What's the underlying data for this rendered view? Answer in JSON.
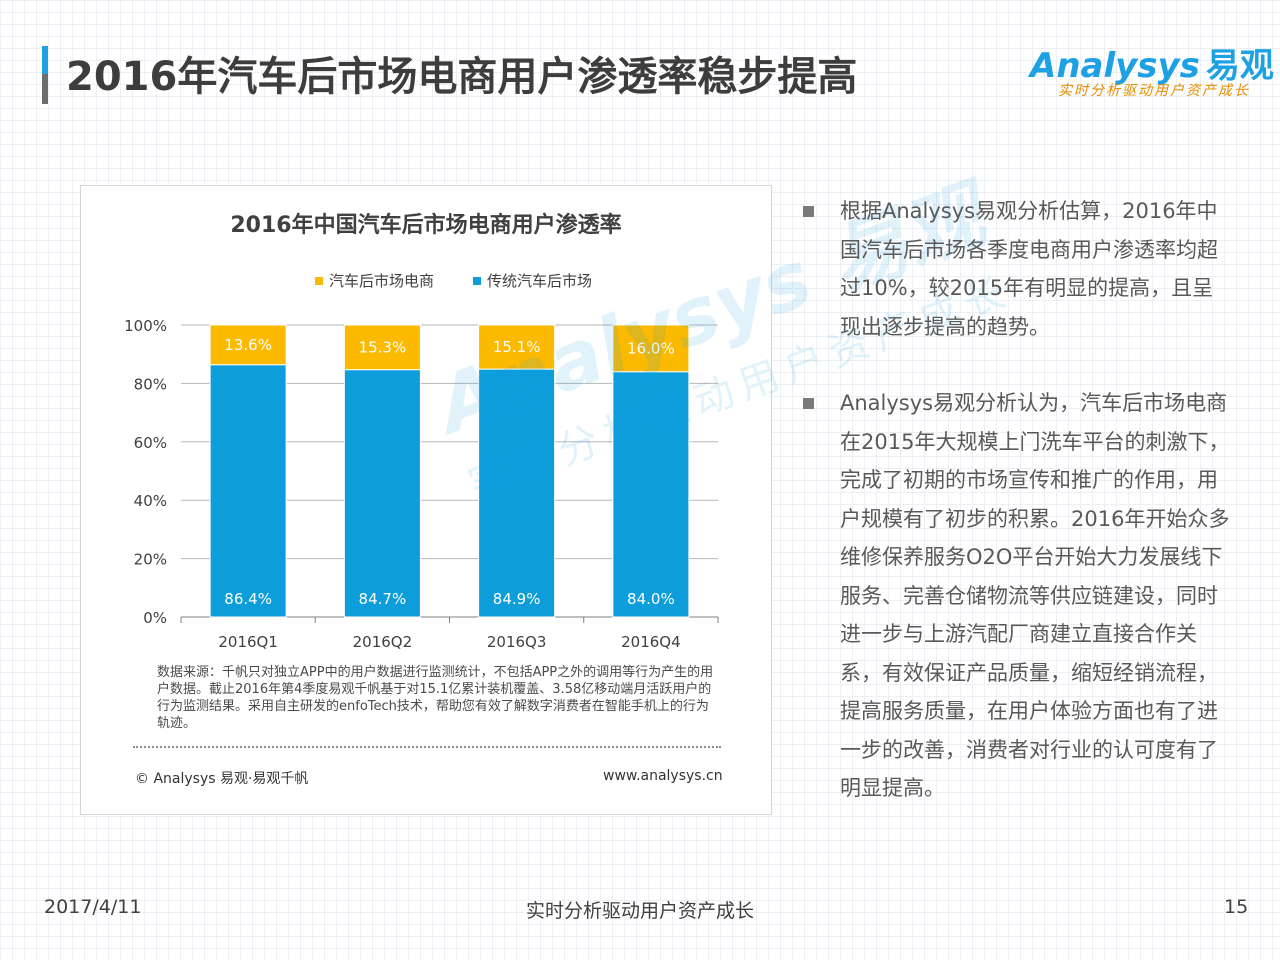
{
  "header": {
    "title": "2016年汽车后市场电商用户渗透率稳步提高",
    "logo_text": "Analysys",
    "logo_cn": "易观",
    "logo_tagline": "实时分析驱动用户资产成长"
  },
  "colors": {
    "accent_blue": "#1ea0e4",
    "accent_orange": "#fbb900"
  },
  "chart_data": {
    "type": "bar",
    "stacked": true,
    "title": "2016年中国汽车后市场电商用户渗透率",
    "categories": [
      "2016Q1",
      "2016Q2",
      "2016Q3",
      "2016Q4"
    ],
    "series": [
      {
        "name": "传统汽车后市场",
        "color": "#0d9ddb",
        "values": [
          86.4,
          84.7,
          84.9,
          84.0
        ],
        "labels": [
          "86.4%",
          "84.7%",
          "84.9%",
          "84.0%"
        ]
      },
      {
        "name": "汽车后市场电商",
        "color": "#fbb900",
        "values": [
          13.6,
          15.3,
          15.1,
          16.0
        ],
        "labels": [
          "13.6%",
          "15.3%",
          "15.1%",
          "16.0%"
        ]
      }
    ],
    "legend_order": [
      "汽车后市场电商",
      "传统汽车后市场"
    ],
    "legend_position": "top",
    "y_ticks": [
      "0%",
      "20%",
      "40%",
      "60%",
      "80%",
      "100%"
    ],
    "ylim": [
      0,
      100
    ],
    "grid": true
  },
  "chart_notes": {
    "source": "数据来源：千帆只对独立APP中的用户数据进行监测统计，不包括APP之外的调用等行为产生的用户数据。截止2016年第4季度易观千帆基于对15.1亿累计装机覆盖、3.58亿移动端月活跃用户的行为监测结果。采用自主研发的enfoTech技术，帮助您有效了解数字消费者在智能手机上的行为轨迹。",
    "copyright": "© Analysys 易观·易观千帆",
    "website": "www.analysys.cn"
  },
  "watermark": {
    "main": "Analysys 易观",
    "tagline": "实时分析驱动用户资产成长"
  },
  "bullets": [
    "根据Analysys易观分析估算，2016年中国汽车后市场各季度电商用户渗透率均超过10%，较2015年有明显的提高，且呈现出逐步提高的趋势。",
    "Analysys易观分析认为，汽车后市场电商在2015年大规模上门洗车平台的刺激下，完成了初期的市场宣传和推广的作用，用户规模有了初步的积累。2016年开始众多维修保养服务O2O平台开始大力发展线下服务、完善仓储物流等供应链建设，同时进一步与上游汽配厂商建立直接合作关系，有效保证产品质量，缩短经销流程，提高服务质量，在用户体验方面也有了进一步的改善，消费者对行业的认可度有了明显提高。"
  ],
  "footer": {
    "date": "2017/4/11",
    "slogan": "实时分析驱动用户资产成长",
    "page": "15"
  }
}
